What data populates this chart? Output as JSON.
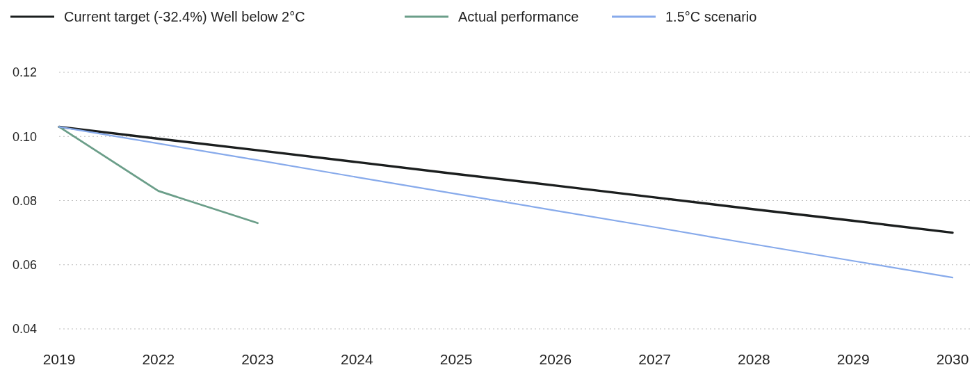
{
  "chart_data": {
    "type": "line",
    "categories": [
      "2019",
      "2022",
      "2023",
      "2024",
      "2025",
      "2026",
      "2027",
      "2028",
      "2029",
      "2030"
    ],
    "series": [
      {
        "name": "Current target (-32.4%) Well below 2°C",
        "color": "#1b1e1e",
        "values": [
          0.103,
          0.0993,
          0.0957,
          0.092,
          0.0883,
          0.0847,
          0.081,
          0.0773,
          0.0737,
          0.07
        ]
      },
      {
        "name": "Actual performance",
        "color": "#6b9e89",
        "values": [
          0.103,
          0.083,
          0.073,
          null,
          null,
          null,
          null,
          null,
          null,
          null
        ]
      },
      {
        "name": "1.5°C scenario",
        "color": "#87aaeb",
        "values": [
          0.103,
          0.0978,
          0.0926,
          0.0873,
          0.0821,
          0.0769,
          0.0717,
          0.0664,
          0.0612,
          0.056
        ]
      }
    ],
    "ylim": [
      0.04,
      0.12
    ],
    "yticks": [
      {
        "value": 0.04,
        "label": "0.04"
      },
      {
        "value": 0.06,
        "label": "0.06"
      },
      {
        "value": 0.08,
        "label": "0.08"
      },
      {
        "value": 0.1,
        "label": "0.10"
      },
      {
        "value": 0.12,
        "label": "0.12"
      }
    ],
    "grid": "y",
    "legend": "top left",
    "marker": "none",
    "line_style": "solid"
  }
}
